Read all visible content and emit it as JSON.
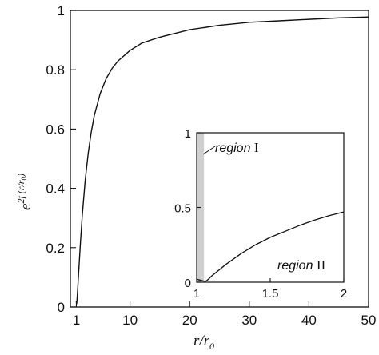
{
  "chart_data": [
    {
      "type": "line",
      "title": "",
      "xlabel": "r/r₀",
      "ylabel": "e^{2f(r/r₀)}",
      "xlim": [
        0,
        50
      ],
      "ylim": [
        0,
        1
      ],
      "x_ticks": [
        "1",
        "10",
        "20",
        "30",
        "40",
        "50"
      ],
      "y_ticks": [
        "0",
        "0.2",
        "0.4",
        "0.6",
        "0.8",
        "1"
      ],
      "grid": false,
      "series": [
        {
          "x": [
            1.0,
            1.05,
            1.1,
            1.2,
            1.4,
            1.7,
            2,
            2.5,
            3,
            3.5,
            4,
            5,
            6,
            7,
            8,
            10,
            12,
            15,
            20,
            25,
            30,
            35,
            40,
            45,
            50
          ],
          "y": [
            0.02,
            0.01,
            0.02,
            0.05,
            0.12,
            0.22,
            0.31,
            0.43,
            0.52,
            0.59,
            0.645,
            0.72,
            0.77,
            0.805,
            0.83,
            0.865,
            0.89,
            0.91,
            0.935,
            0.95,
            0.96,
            0.965,
            0.97,
            0.975,
            0.978
          ]
        }
      ]
    },
    {
      "type": "line",
      "title": "",
      "xlim": [
        1,
        2
      ],
      "ylim": [
        0,
        1
      ],
      "x_ticks": [
        "1",
        "1.5",
        "2"
      ],
      "y_ticks": [
        "0",
        "0.5",
        "1"
      ],
      "grid": false,
      "shaded_x_range": [
        1.0,
        1.05
      ],
      "annotations": [
        "region I",
        "region II"
      ],
      "series": [
        {
          "x": [
            1.0,
            1.02,
            1.04,
            1.06,
            1.08,
            1.1,
            1.2,
            1.3,
            1.4,
            1.5,
            1.6,
            1.7,
            1.8,
            1.9,
            2.0
          ],
          "y": [
            0.02,
            0.015,
            0.01,
            0.005,
            0.02,
            0.04,
            0.12,
            0.19,
            0.25,
            0.3,
            0.34,
            0.38,
            0.415,
            0.445,
            0.47
          ]
        }
      ]
    }
  ]
}
